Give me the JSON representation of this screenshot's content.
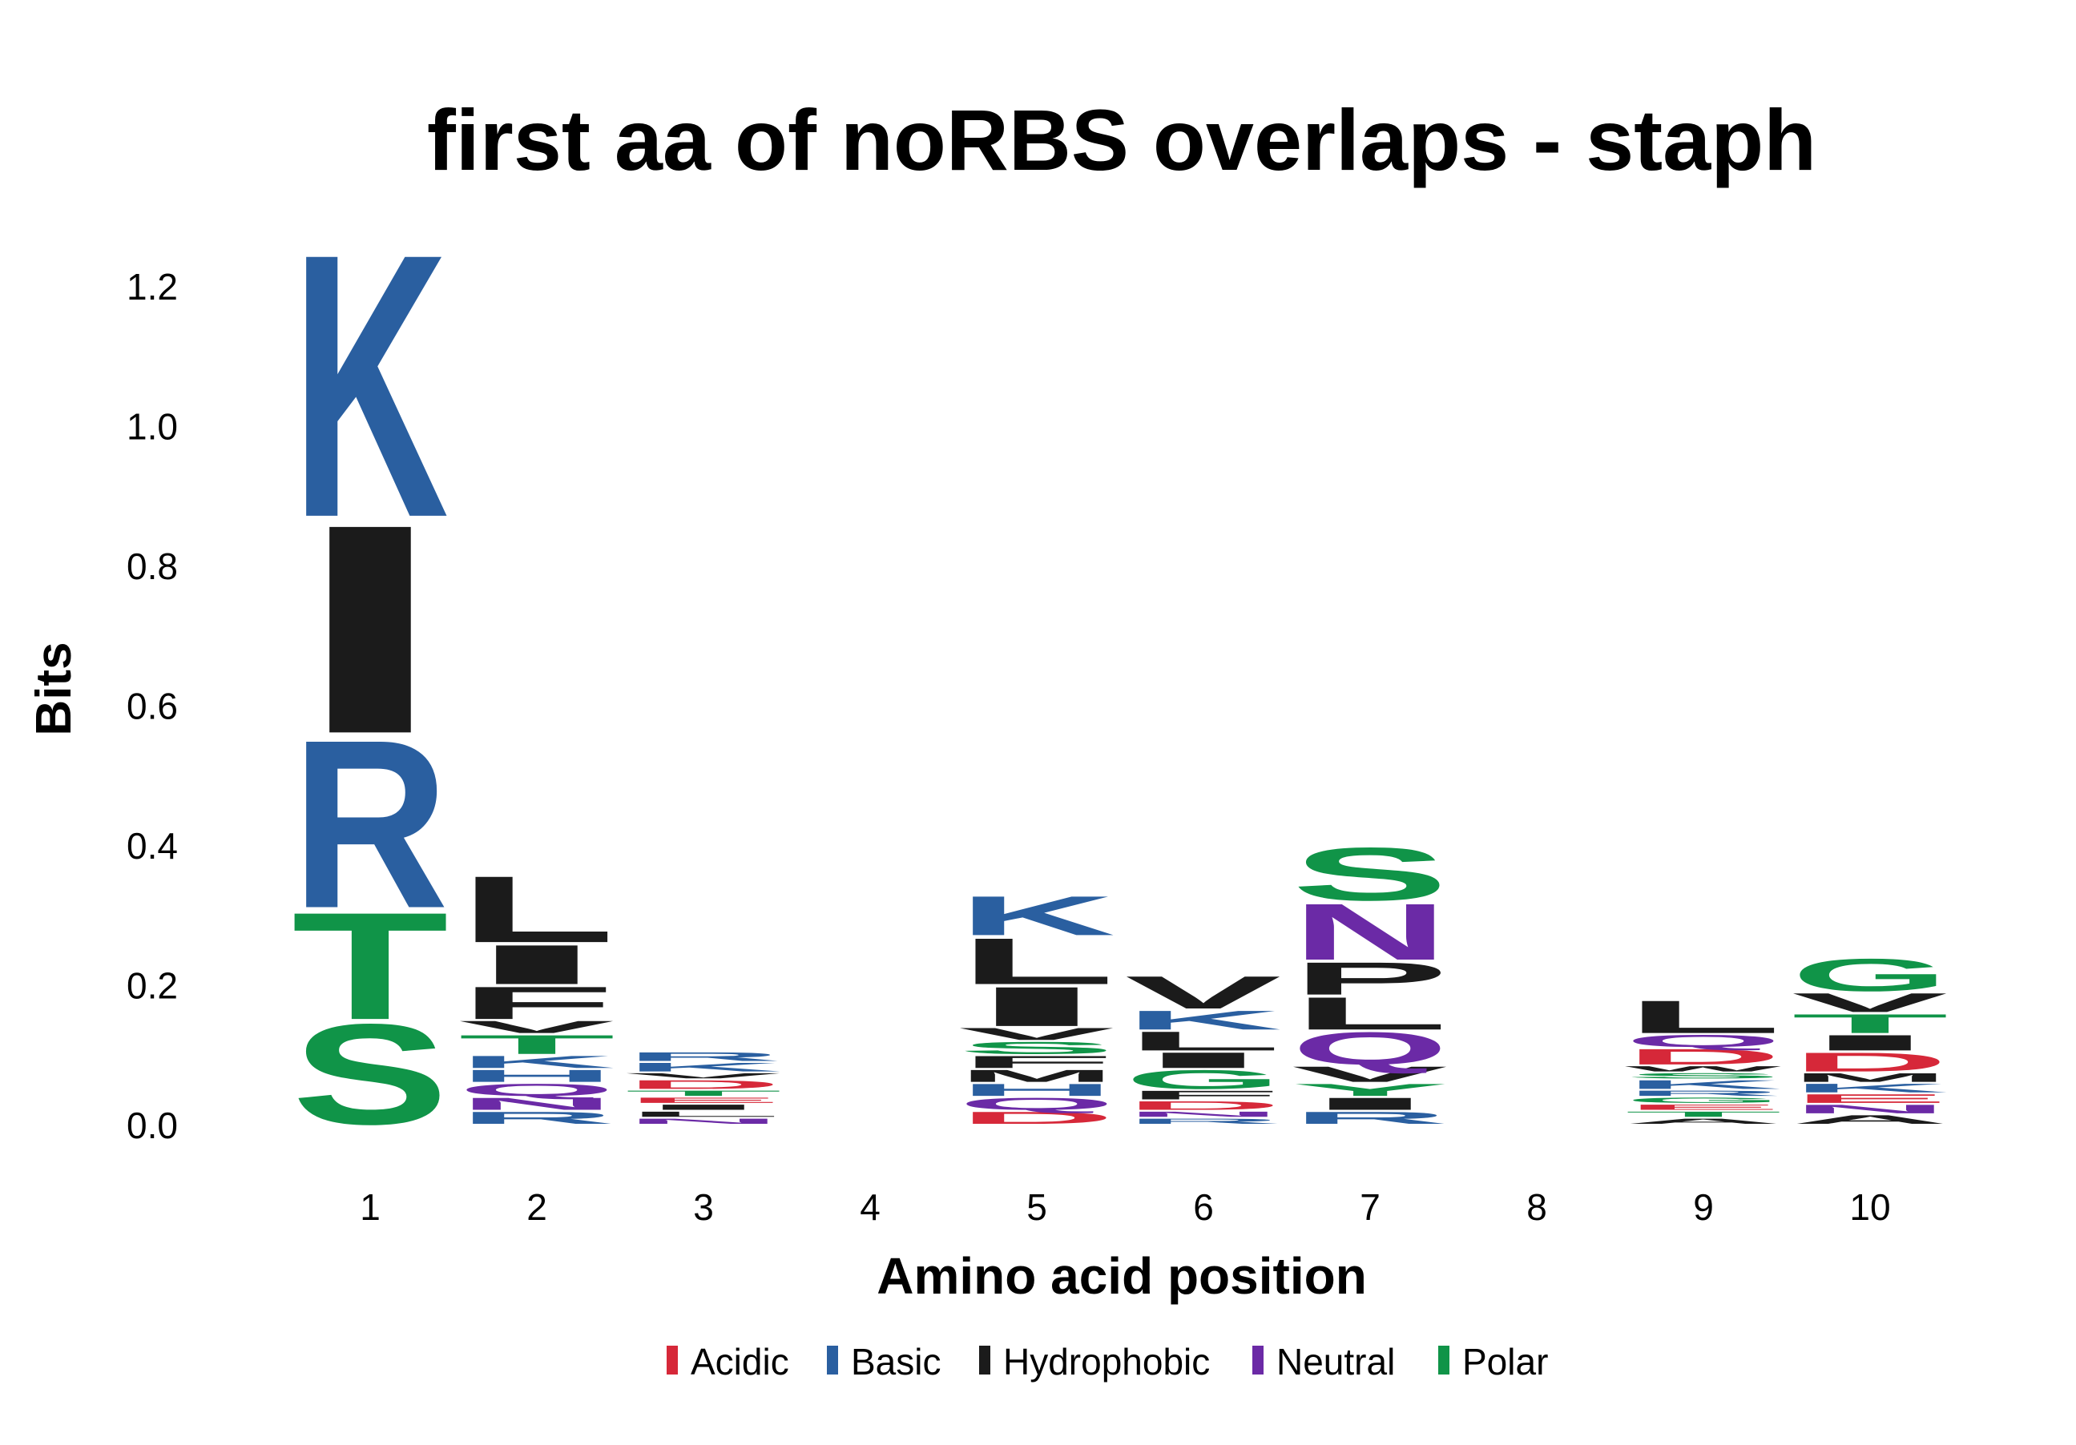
{
  "chart_data": {
    "type": "sequence-logo",
    "title": "first aa of noRBS overlaps - staph",
    "xlabel": "Amino acid position",
    "ylabel": "Bits",
    "ylim": [
      0,
      1.25
    ],
    "yticks": [
      "0.0",
      "0.2",
      "0.4",
      "0.6",
      "0.8",
      "1.0",
      "1.2"
    ],
    "ytick_values": [
      0,
      0.2,
      0.4,
      0.6,
      0.8,
      1.0,
      1.2
    ],
    "positions": [
      "1",
      "2",
      "3",
      "4",
      "5",
      "6",
      "7",
      "8",
      "9",
      "10"
    ],
    "grid": false,
    "legend_position": "bottom",
    "legend": [
      {
        "label": "Acidic",
        "color": "#d62839"
      },
      {
        "label": "Basic",
        "color": "#2a5fa0"
      },
      {
        "label": "Hydrophobic",
        "color": "#1b1b1b"
      },
      {
        "label": "Neutral",
        "color": "#6b2aa6"
      },
      {
        "label": "Polar",
        "color": "#109448"
      }
    ],
    "class_colors": {
      "acidic": "#d62839",
      "basic": "#2a5fa0",
      "hydrophobic": "#1b1b1b",
      "neutral": "#6b2aa6",
      "polar": "#109448"
    },
    "stacks": [
      {
        "position": "1",
        "letters": [
          {
            "aa": "S",
            "class": "polar",
            "bits": 0.15
          },
          {
            "aa": "T",
            "class": "polar",
            "bits": 0.16
          },
          {
            "aa": "R",
            "class": "basic",
            "bits": 0.25
          },
          {
            "aa": "I",
            "class": "hydrophobic",
            "bits": 0.31
          },
          {
            "aa": "K",
            "class": "basic",
            "bits": 0.39
          }
        ]
      },
      {
        "position": "2",
        "letters": [
          {
            "aa": "R",
            "class": "basic",
            "bits": 0.02
          },
          {
            "aa": "N",
            "class": "neutral",
            "bits": 0.02
          },
          {
            "aa": "Q",
            "class": "neutral",
            "bits": 0.02
          },
          {
            "aa": "H",
            "class": "basic",
            "bits": 0.02
          },
          {
            "aa": "K",
            "class": "basic",
            "bits": 0.02
          },
          {
            "aa": "T",
            "class": "polar",
            "bits": 0.03
          },
          {
            "aa": "V",
            "class": "hydrophobic",
            "bits": 0.02
          },
          {
            "aa": "F",
            "class": "hydrophobic",
            "bits": 0.05
          },
          {
            "aa": "I",
            "class": "hydrophobic",
            "bits": 0.06
          },
          {
            "aa": "L",
            "class": "hydrophobic",
            "bits": 0.1
          }
        ]
      },
      {
        "position": "3",
        "letters": [
          {
            "aa": "N",
            "class": "neutral",
            "bits": 0.01
          },
          {
            "aa": "L",
            "class": "hydrophobic",
            "bits": 0.01
          },
          {
            "aa": "I",
            "class": "hydrophobic",
            "bits": 0.01
          },
          {
            "aa": "E",
            "class": "acidic",
            "bits": 0.01
          },
          {
            "aa": "T",
            "class": "polar",
            "bits": 0.01
          },
          {
            "aa": "D",
            "class": "acidic",
            "bits": 0.015
          },
          {
            "aa": "V",
            "class": "hydrophobic",
            "bits": 0.01
          },
          {
            "aa": "K",
            "class": "basic",
            "bits": 0.015
          },
          {
            "aa": "R",
            "class": "basic",
            "bits": 0.015
          }
        ]
      },
      {
        "position": "4",
        "letters": []
      },
      {
        "position": "5",
        "letters": [
          {
            "aa": "D",
            "class": "acidic",
            "bits": 0.02
          },
          {
            "aa": "Q",
            "class": "neutral",
            "bits": 0.02
          },
          {
            "aa": "H",
            "class": "basic",
            "bits": 0.02
          },
          {
            "aa": "M",
            "class": "hydrophobic",
            "bits": 0.02
          },
          {
            "aa": "F",
            "class": "hydrophobic",
            "bits": 0.02
          },
          {
            "aa": "S",
            "class": "polar",
            "bits": 0.02
          },
          {
            "aa": "V",
            "class": "hydrophobic",
            "bits": 0.02
          },
          {
            "aa": "I",
            "class": "hydrophobic",
            "bits": 0.06
          },
          {
            "aa": "L",
            "class": "hydrophobic",
            "bits": 0.07
          },
          {
            "aa": "K",
            "class": "basic",
            "bits": 0.06
          }
        ]
      },
      {
        "position": "6",
        "letters": [
          {
            "aa": "R",
            "class": "basic",
            "bits": 0.01
          },
          {
            "aa": "N",
            "class": "neutral",
            "bits": 0.01
          },
          {
            "aa": "D",
            "class": "acidic",
            "bits": 0.015
          },
          {
            "aa": "F",
            "class": "hydrophobic",
            "bits": 0.015
          },
          {
            "aa": "G",
            "class": "polar",
            "bits": 0.03
          },
          {
            "aa": "I",
            "class": "hydrophobic",
            "bits": 0.025
          },
          {
            "aa": "L",
            "class": "hydrophobic",
            "bits": 0.03
          },
          {
            "aa": "K",
            "class": "basic",
            "bits": 0.03
          },
          {
            "aa": "V",
            "class": "hydrophobic",
            "bits": 0.05
          }
        ]
      },
      {
        "position": "7",
        "letters": [
          {
            "aa": "R",
            "class": "basic",
            "bits": 0.02
          },
          {
            "aa": "I",
            "class": "hydrophobic",
            "bits": 0.02
          },
          {
            "aa": "Y",
            "class": "polar",
            "bits": 0.02
          },
          {
            "aa": "V",
            "class": "hydrophobic",
            "bits": 0.025
          },
          {
            "aa": "Q",
            "class": "neutral",
            "bits": 0.05
          },
          {
            "aa": "L",
            "class": "hydrophobic",
            "bits": 0.05
          },
          {
            "aa": "P",
            "class": "hydrophobic",
            "bits": 0.05
          },
          {
            "aa": "N",
            "class": "neutral",
            "bits": 0.085
          },
          {
            "aa": "S",
            "class": "polar",
            "bits": 0.08
          }
        ]
      },
      {
        "position": "8",
        "letters": []
      },
      {
        "position": "9",
        "letters": [
          {
            "aa": "A",
            "class": "hydrophobic",
            "bits": 0.01
          },
          {
            "aa": "T",
            "class": "polar",
            "bits": 0.01
          },
          {
            "aa": "E",
            "class": "acidic",
            "bits": 0.01
          },
          {
            "aa": "G",
            "class": "polar",
            "bits": 0.01
          },
          {
            "aa": "R",
            "class": "basic",
            "bits": 0.01
          },
          {
            "aa": "K",
            "class": "basic",
            "bits": 0.015
          },
          {
            "aa": "S",
            "class": "polar",
            "bits": 0.01
          },
          {
            "aa": "W",
            "class": "hydrophobic",
            "bits": 0.01
          },
          {
            "aa": "D",
            "class": "acidic",
            "bits": 0.025
          },
          {
            "aa": "Q",
            "class": "neutral",
            "bits": 0.02
          },
          {
            "aa": "L",
            "class": "hydrophobic",
            "bits": 0.05
          }
        ]
      },
      {
        "position": "10",
        "letters": [
          {
            "aa": "A",
            "class": "hydrophobic",
            "bits": 0.015
          },
          {
            "aa": "N",
            "class": "neutral",
            "bits": 0.015
          },
          {
            "aa": "E",
            "class": "acidic",
            "bits": 0.015
          },
          {
            "aa": "K",
            "class": "basic",
            "bits": 0.015
          },
          {
            "aa": "M",
            "class": "hydrophobic",
            "bits": 0.015
          },
          {
            "aa": "D",
            "class": "acidic",
            "bits": 0.03
          },
          {
            "aa": "I",
            "class": "hydrophobic",
            "bits": 0.025
          },
          {
            "aa": "T",
            "class": "polar",
            "bits": 0.03
          },
          {
            "aa": "V",
            "class": "hydrophobic",
            "bits": 0.03
          },
          {
            "aa": "G",
            "class": "polar",
            "bits": 0.05
          }
        ]
      }
    ]
  }
}
